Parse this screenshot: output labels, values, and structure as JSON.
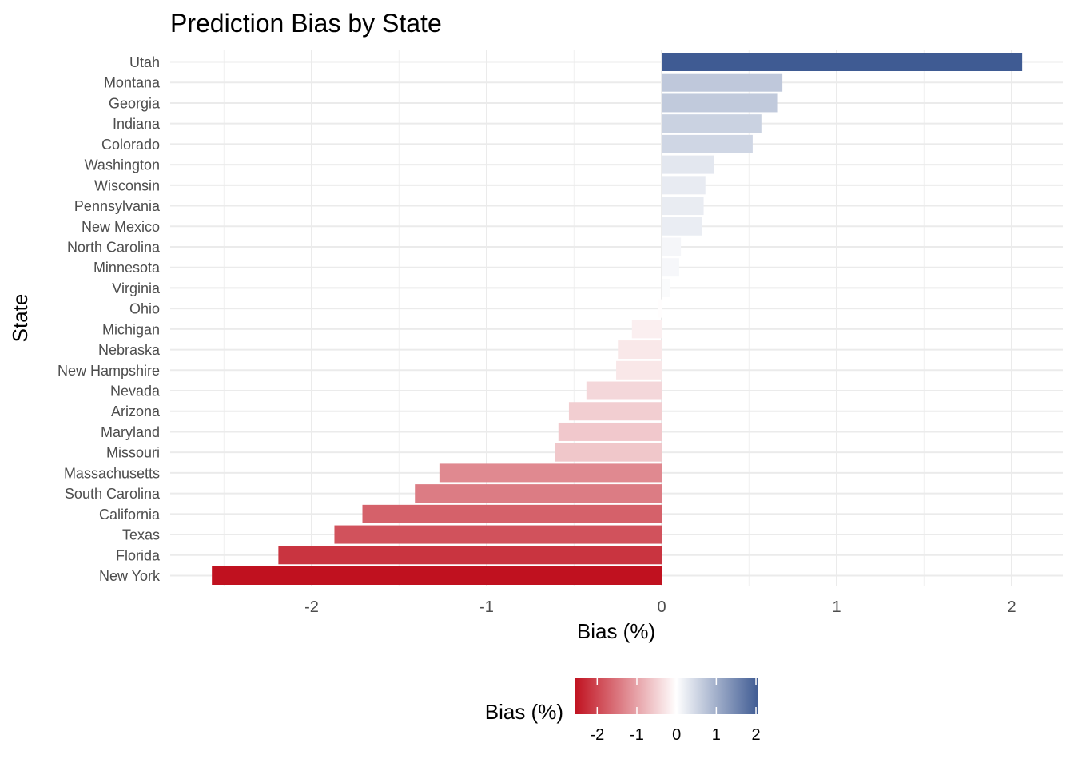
{
  "chart_data": {
    "type": "bar",
    "orientation": "horizontal",
    "title": "Prediction Bias by State",
    "xlabel": "Bias (%)",
    "ylabel": "State",
    "xlim": [
      -2.57,
      2.06
    ],
    "x_ticks": [
      "-2",
      "-1",
      "0",
      "1",
      "2"
    ],
    "x_tick_values": [
      -2,
      -1,
      0,
      1,
      2
    ],
    "grid": true,
    "categories": [
      "Utah",
      "Montana",
      "Georgia",
      "Indiana",
      "Colorado",
      "Washington",
      "Wisconsin",
      "Pennsylvania",
      "New Mexico",
      "North Carolina",
      "Minnesota",
      "Virginia",
      "Ohio",
      "Michigan",
      "Nebraska",
      "New Hampshire",
      "Nevada",
      "Arizona",
      "Maryland",
      "Missouri",
      "Massachusetts",
      "South Carolina",
      "California",
      "Texas",
      "Florida",
      "New York"
    ],
    "values": [
      2.06,
      0.69,
      0.66,
      0.57,
      0.52,
      0.3,
      0.25,
      0.24,
      0.23,
      0.11,
      0.1,
      0.05,
      -0.02,
      -0.17,
      -0.25,
      -0.26,
      -0.43,
      -0.53,
      -0.59,
      -0.61,
      -1.27,
      -1.41,
      -1.71,
      -1.87,
      -2.19,
      -2.57
    ],
    "legend": {
      "title": "Bias (%)",
      "position": "bottom",
      "ticks": [
        "-2",
        "-1",
        "0",
        "1",
        "2"
      ],
      "tick_values": [
        -2,
        -1,
        0,
        1,
        2
      ],
      "low_color": "#c0111f",
      "mid_color": "#ffffff",
      "high_color": "#3f5b93"
    }
  }
}
